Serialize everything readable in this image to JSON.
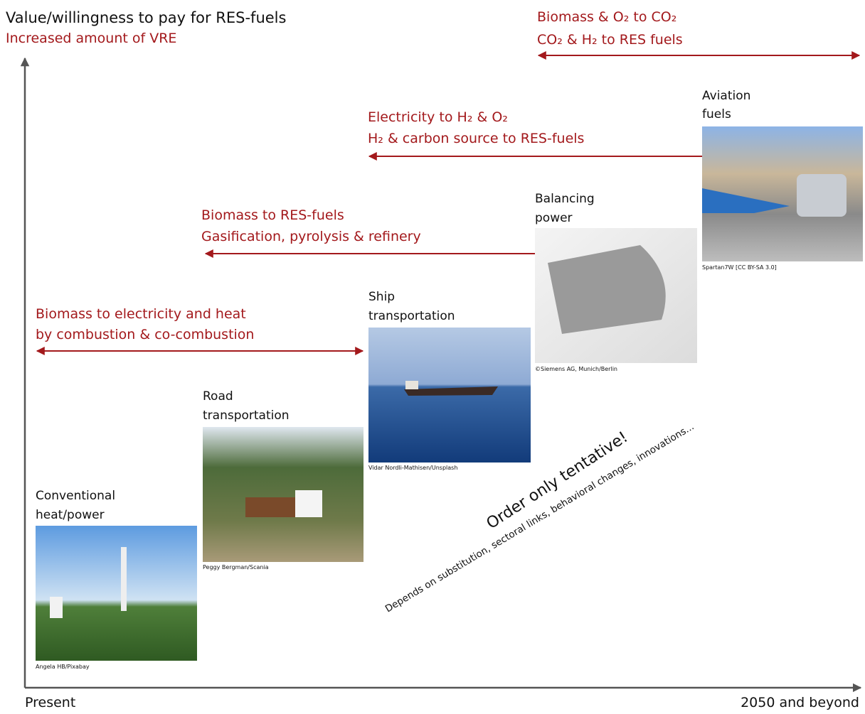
{
  "axes": {
    "y_label": "Value/willingness to pay for RES-fuels",
    "y_sublabel": "Increased amount of VRE",
    "x_start": "Present",
    "x_end": "2050 and beyond"
  },
  "processes": [
    {
      "lines": [
        "Biomass & O₂ to CO₂",
        "CO₂ & H₂ to RES fuels"
      ]
    },
    {
      "lines": [
        "Electricity to H₂ & O₂",
        "H₂ & carbon source to RES-fuels"
      ]
    },
    {
      "lines": [
        "Biomass to RES-fuels",
        "Gasification, pyrolysis & refinery"
      ]
    },
    {
      "lines": [
        "Biomass to electricity and heat",
        "by combustion & co-combustion"
      ]
    }
  ],
  "sectors": [
    {
      "label_lines": [
        "Conventional",
        "heat/power"
      ],
      "credit": "Angela HB/Pixabay"
    },
    {
      "label_lines": [
        "Road",
        "transportation"
      ],
      "credit": "Peggy Bergman/Scania"
    },
    {
      "label_lines": [
        "Ship",
        "transportation"
      ],
      "credit": "Vidar Nordli-Mathisen/Unsplash"
    },
    {
      "label_lines": [
        "Balancing",
        "power"
      ],
      "credit": "©Siemens AG, Munich/Berlin"
    },
    {
      "label_lines": [
        "Aviation",
        "fuels"
      ],
      "credit": "Spartan7W [CC BY-SA 3.0]"
    }
  ],
  "note": {
    "title": "Order only tentative!",
    "text": "Depends on substitution, sectoral links, behavioral changes, innovations..."
  }
}
